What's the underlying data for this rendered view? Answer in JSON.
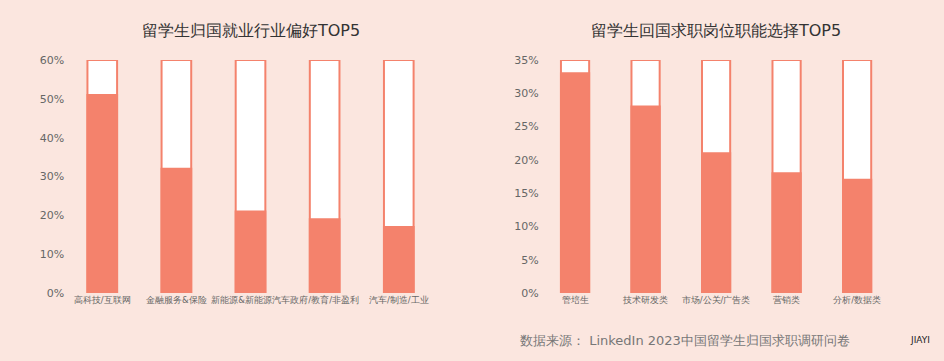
{
  "chart_data": [
    {
      "type": "bar",
      "title": "留学生归国就业行业偏好TOP5",
      "categories": [
        "高科技/互联网",
        "金融服务&保险",
        "新能源&新能源汽车",
        "政府/教育/非盈利",
        "汽车/制造/工业"
      ],
      "values": [
        51,
        32,
        21,
        19,
        17
      ],
      "color": "#f4826c",
      "ylim": [
        0,
        60
      ],
      "yticks": [
        {
          "value": 0,
          "label": "0%"
        },
        {
          "value": 10,
          "label": "10%"
        },
        {
          "value": 20,
          "label": "20%"
        },
        {
          "value": 30,
          "label": "30%"
        },
        {
          "value": 40,
          "label": "40%"
        },
        {
          "value": 50,
          "label": "50%"
        },
        {
          "value": 60,
          "label": "60%"
        }
      ],
      "grid": false
    },
    {
      "type": "bar",
      "title": "留学生回国求职岗位职能选择TOP5",
      "categories": [
        "管培生",
        "技术研发类",
        "市场/公关/广告类",
        "营销类",
        "分析/数据类"
      ],
      "values": [
        33,
        28,
        21,
        18,
        17
      ],
      "color": "#f4826c",
      "ylim": [
        0,
        35
      ],
      "yticks": [
        {
          "value": 0,
          "label": "0%"
        },
        {
          "value": 5,
          "label": "5%"
        },
        {
          "value": 10,
          "label": "10%"
        },
        {
          "value": 15,
          "label": "15%"
        },
        {
          "value": 20,
          "label": "20%"
        },
        {
          "value": 25,
          "label": "25%"
        },
        {
          "value": 30,
          "label": "30%"
        },
        {
          "value": 35,
          "label": "35%"
        }
      ],
      "grid": false
    }
  ],
  "source": "数据来源： LinkedIn 2023中国留学生归国求职调研问卷",
  "watermark": "JIAYI"
}
